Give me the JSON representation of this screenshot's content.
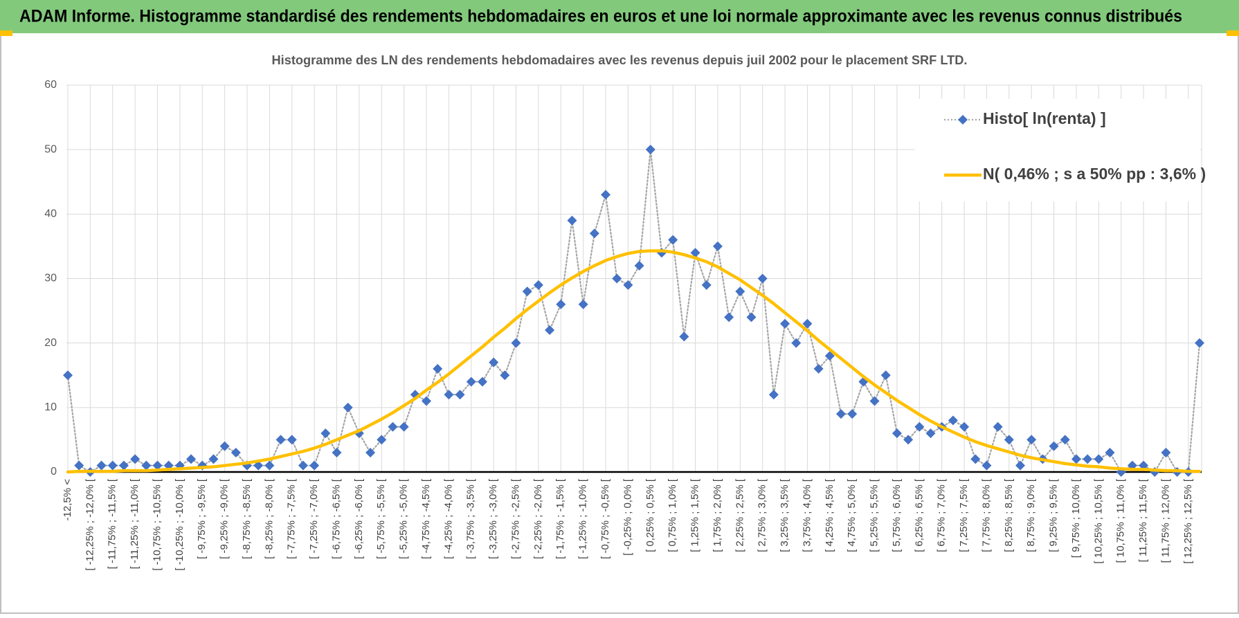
{
  "header": {
    "title": "ADAM Informe. Histogramme standardisé des rendements hebdomadaires en euros et une loi normale approximante avec les revenus connus distribués"
  },
  "chart_data": {
    "type": "line",
    "title": "Histogramme des LN des rendements hebdomadaires avec les revenus depuis juil 2002 pour le placement SRF LTD.",
    "categories": [
      "-12,5% <",
      null,
      "[ -12,25% ; -12,0% [",
      null,
      "[ -11,75% ; -11,5% [",
      null,
      "[ -11,25% ; -11,0% [",
      null,
      "[ -10,75% ; -10,5% [",
      null,
      "[ -10,25% ; -10,0% [",
      null,
      "[ -9,75% ; -9,5% [",
      null,
      "[ -9,25% ; -9,0% [",
      null,
      "[ -8,75% ; -8,5% [",
      null,
      "[ -8,25% ; -8,0% [",
      null,
      "[ -7,75% ; -7,5% [",
      null,
      "[ -7,25% ; -7,0% [",
      null,
      "[ -6,75% ; -6,5% [",
      null,
      "[ -6,25% ; -6,0% [",
      null,
      "[ -5,75% ; -5,5% [",
      null,
      "[ -5,25% ; -5,0% [",
      null,
      "[ -4,75% ; -4,5% [",
      null,
      "[ -4,25% ; -4,0% [",
      null,
      "[ -3,75% ; -3,5% [",
      null,
      "[ -3,25% ; -3,0% [",
      null,
      "[ -2,75% ; -2,5% [",
      null,
      "[ -2,25% ; -2,0% [",
      null,
      "[ -1,75% ; -1,5% [",
      null,
      "[ -1,25% ; -1,0% [",
      null,
      "[ -0,75% ; -0,5% [",
      null,
      "[ -0,25% ; 0,0% [",
      null,
      "[ 0,25% ; 0,5% [",
      null,
      "[ 0,75% ; 1,0% [",
      null,
      "[ 1,25% ; 1,5% [",
      null,
      "[ 1,75% ; 2,0% [",
      null,
      "[ 2,25% ; 2,5% [",
      null,
      "[ 2,75% ; 3,0% [",
      null,
      "[ 3,25% ; 3,5% [",
      null,
      "[ 3,75% ; 4,0% [",
      null,
      "[ 4,25% ; 4,5% [",
      null,
      "[ 4,75% ; 5,0% [",
      null,
      "[ 5,25% ; 5,5% [",
      null,
      "[ 5,75% ; 6,0% [",
      null,
      "[ 6,25% ; 6,5% [",
      null,
      "[ 6,75% ; 7,0% [",
      null,
      "[ 7,25% ; 7,5% [",
      null,
      "[ 7,75% ; 8,0% [",
      null,
      "[ 8,25% ; 8,5% [",
      null,
      "[ 8,75% ; 9,0% [",
      null,
      "[ 9,25% ; 9,5% [",
      null,
      "[ 9,75% ; 10,0% [",
      null,
      "[ 10,25% ; 10,5% [",
      null,
      "[ 10,75% ; 11,0% [",
      null,
      "[ 11,25% ; 11,5% [",
      null,
      "[ 11,75% ; 12,0% [",
      null,
      "[ 12,25% ; 12,5% [",
      null
    ],
    "series": [
      {
        "name": "Histo[ ln(renta) ]",
        "color": "#4472c4",
        "line_color": "#a5a5a5",
        "marker": "diamond",
        "line_style": "dotted",
        "values": [
          15,
          1,
          0,
          1,
          1,
          1,
          2,
          1,
          1,
          1,
          1,
          2,
          1,
          2,
          4,
          3,
          1,
          1,
          1,
          5,
          5,
          1,
          1,
          6,
          3,
          10,
          6,
          3,
          5,
          7,
          7,
          12,
          11,
          16,
          12,
          12,
          14,
          14,
          17,
          15,
          20,
          28,
          29,
          22,
          26,
          39,
          26,
          37,
          43,
          30,
          29,
          32,
          50,
          34,
          36,
          21,
          34,
          29,
          35,
          24,
          28,
          24,
          30,
          12,
          23,
          20,
          23,
          16,
          18,
          9,
          9,
          14,
          11,
          15,
          6,
          5,
          7,
          6,
          7,
          8,
          7,
          2,
          1,
          7,
          5,
          1,
          5,
          2,
          4,
          5,
          2,
          2,
          2,
          3,
          0,
          1,
          1,
          0,
          3,
          0,
          0,
          20
        ]
      },
      {
        "name": "N( 0,46% ; s a 50% pp : 3,6% )",
        "color": "#ffc000",
        "marker": "none",
        "line_style": "solid",
        "values": [
          0.0,
          0.1,
          0.1,
          0.1,
          0.1,
          0.2,
          0.2,
          0.2,
          0.3,
          0.4,
          0.5,
          0.6,
          0.7,
          0.8,
          1.0,
          1.2,
          1.4,
          1.7,
          2.0,
          2.4,
          2.8,
          3.2,
          3.7,
          4.3,
          5.0,
          5.7,
          6.4,
          7.3,
          8.2,
          9.2,
          10.3,
          11.4,
          12.7,
          13.9,
          15.2,
          16.6,
          18.0,
          19.4,
          20.9,
          22.3,
          23.8,
          25.2,
          26.5,
          27.8,
          29.0,
          30.1,
          31.1,
          32.0,
          32.8,
          33.4,
          33.9,
          34.2,
          34.3,
          34.3,
          34.1,
          33.7,
          33.2,
          32.6,
          31.8,
          30.8,
          29.8,
          28.6,
          27.4,
          26.1,
          24.7,
          23.3,
          21.9,
          20.4,
          19.0,
          17.6,
          16.2,
          14.8,
          13.5,
          12.3,
          11.1,
          10.0,
          8.9,
          7.9,
          7.0,
          6.2,
          5.4,
          4.7,
          4.1,
          3.6,
          3.1,
          2.6,
          2.2,
          1.9,
          1.6,
          1.3,
          1.1,
          0.9,
          0.8,
          0.6,
          0.5,
          0.4,
          0.4,
          0.3,
          0.2,
          0.2,
          0.1,
          0.1
        ]
      }
    ],
    "ylim": [
      0,
      60
    ],
    "yticks": [
      0,
      10,
      20,
      30,
      40,
      50,
      60
    ],
    "grid": true,
    "legend": "top-right"
  }
}
